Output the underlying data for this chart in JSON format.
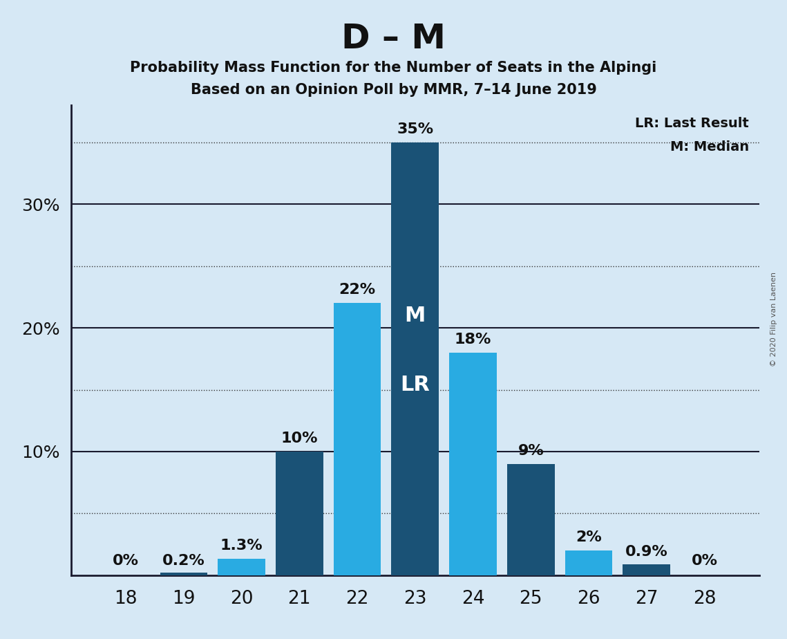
{
  "title": "D – M",
  "subtitle1": "Probability Mass Function for the Number of Seats in the Alpingi",
  "subtitle2": "Based on an Opinion Poll by MMR, 7–14 June 2019",
  "seats": [
    18,
    19,
    20,
    21,
    22,
    23,
    24,
    25,
    26,
    27,
    28
  ],
  "values": [
    0.0,
    0.2,
    1.3,
    10.0,
    22.0,
    35.0,
    18.0,
    9.0,
    2.0,
    0.9,
    0.0
  ],
  "labels": [
    "0%",
    "0.2%",
    "1.3%",
    "10%",
    "22%",
    "35%",
    "18%",
    "9%",
    "2%",
    "0.9%",
    "0%"
  ],
  "bar_colors": [
    "#1a5276",
    "#1a5276",
    "#29abe2",
    "#1a5276",
    "#29abe2",
    "#1a5276",
    "#29abe2",
    "#1a5276",
    "#29abe2",
    "#1a5276",
    "#1a5276"
  ],
  "background_color": "#d6e8f5",
  "median_seat": 23,
  "legend_lr": "LR: Last Result",
  "legend_m": "M: Median",
  "copyright": "© 2020 Filip van Laenen",
  "ylim": [
    0,
    38
  ],
  "solid_yticks": [
    10,
    20,
    30
  ],
  "dotted_yticks": [
    5,
    15,
    25,
    35
  ],
  "label_yticks": [
    10,
    20,
    30
  ],
  "text_color": "#111111",
  "grid_color": "#333333",
  "spine_color": "#1a1a2e",
  "dark_blue": "#1a5276",
  "light_blue": "#29abe2"
}
